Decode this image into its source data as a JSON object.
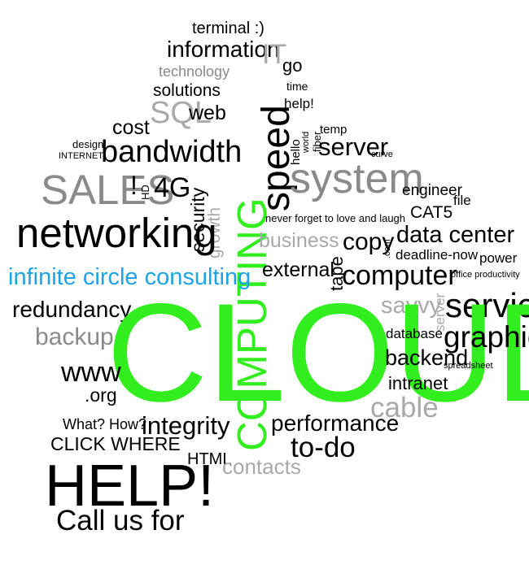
{
  "palette": {
    "black": "#000000",
    "gray": "#8a8a8a",
    "lightgray": "#a9a9a9",
    "green": "#33ee1f",
    "blue": "#1fa3e6"
  },
  "words": {
    "terminal": "terminal :)",
    "information": "information",
    "it": "IT",
    "go": "go",
    "technology": "technology",
    "time": "time",
    "solutions": "solutions",
    "help_small": "help!",
    "sql": "SQL",
    "web": "web",
    "cost": "cost",
    "design": "design",
    "internet": "INTERNET",
    "bandwidth": "bandwidth",
    "computing": "COMPUTING",
    "speed": "speed",
    "hello": "hello",
    "world": "world",
    "fiber": "fiber",
    "temp": "temp",
    "server": "server",
    "curve": "curve",
    "sales": "SALES",
    "exclaim": "!",
    "hd": "HD",
    "fourg": "4G",
    "security": "security",
    "growth": "growth",
    "system": "system",
    "engineer": "engineer",
    "file": "file",
    "cat5": "CAT5",
    "never_forget": "never forget to love and laugh",
    "networking": "networking",
    "business": "business",
    "tape": "tape",
    "copy": "copy",
    "dotcom": ".com",
    "data_center": "data center",
    "deadline": "deadline-now",
    "power": "power",
    "infinite": "infinite circle consulting",
    "external": "external",
    "computer": "computer",
    "office_productivity": "office productivity",
    "redundancy": "redundancy",
    "savvy": "savvy",
    "server_vertical": "server",
    "service": "service",
    "cloud": "CLOUD",
    "backup": "backup",
    "database": "database",
    "graphic": "graphic",
    "www": "www",
    "backend": "backend",
    "spreadsheet": "spreadsheet",
    "org": ".org",
    "intranet": "intranet",
    "cable": "cable",
    "what_how": "What? How?",
    "integrity": "integrity",
    "performance": "performance",
    "click_where": "CLICK WHERE",
    "to_do": "to-do",
    "html": "HTML",
    "contacts": "contacts",
    "help_big": "HELP!",
    "call_us": "Call us for"
  }
}
